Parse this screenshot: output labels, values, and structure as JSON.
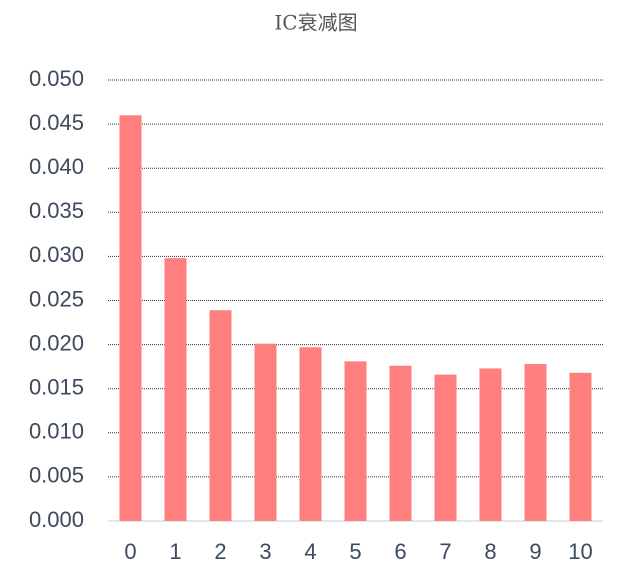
{
  "chart_data": {
    "type": "bar",
    "title": "IC衰减图",
    "categories": [
      "0",
      "1",
      "2",
      "3",
      "4",
      "5",
      "6",
      "7",
      "8",
      "9",
      "10"
    ],
    "values": [
      0.046,
      0.0298,
      0.0239,
      0.0201,
      0.0197,
      0.0181,
      0.0176,
      0.0166,
      0.0173,
      0.0178,
      0.0168
    ],
    "color": "#ff7f7f",
    "ylim": [
      0,
      0.05
    ],
    "yticks": [
      {
        "value": 0,
        "label": "0.000"
      },
      {
        "value": 0.005,
        "label": "0.005"
      },
      {
        "value": 0.01,
        "label": "0.010"
      },
      {
        "value": 0.015,
        "label": "0.015"
      },
      {
        "value": 0.02,
        "label": "0.020"
      },
      {
        "value": 0.025,
        "label": "0.025"
      },
      {
        "value": 0.03,
        "label": "0.030"
      },
      {
        "value": 0.035,
        "label": "0.035"
      },
      {
        "value": 0.04,
        "label": "0.040"
      },
      {
        "value": 0.045,
        "label": "0.045"
      },
      {
        "value": 0.05,
        "label": "0.050"
      }
    ],
    "grid": true
  }
}
